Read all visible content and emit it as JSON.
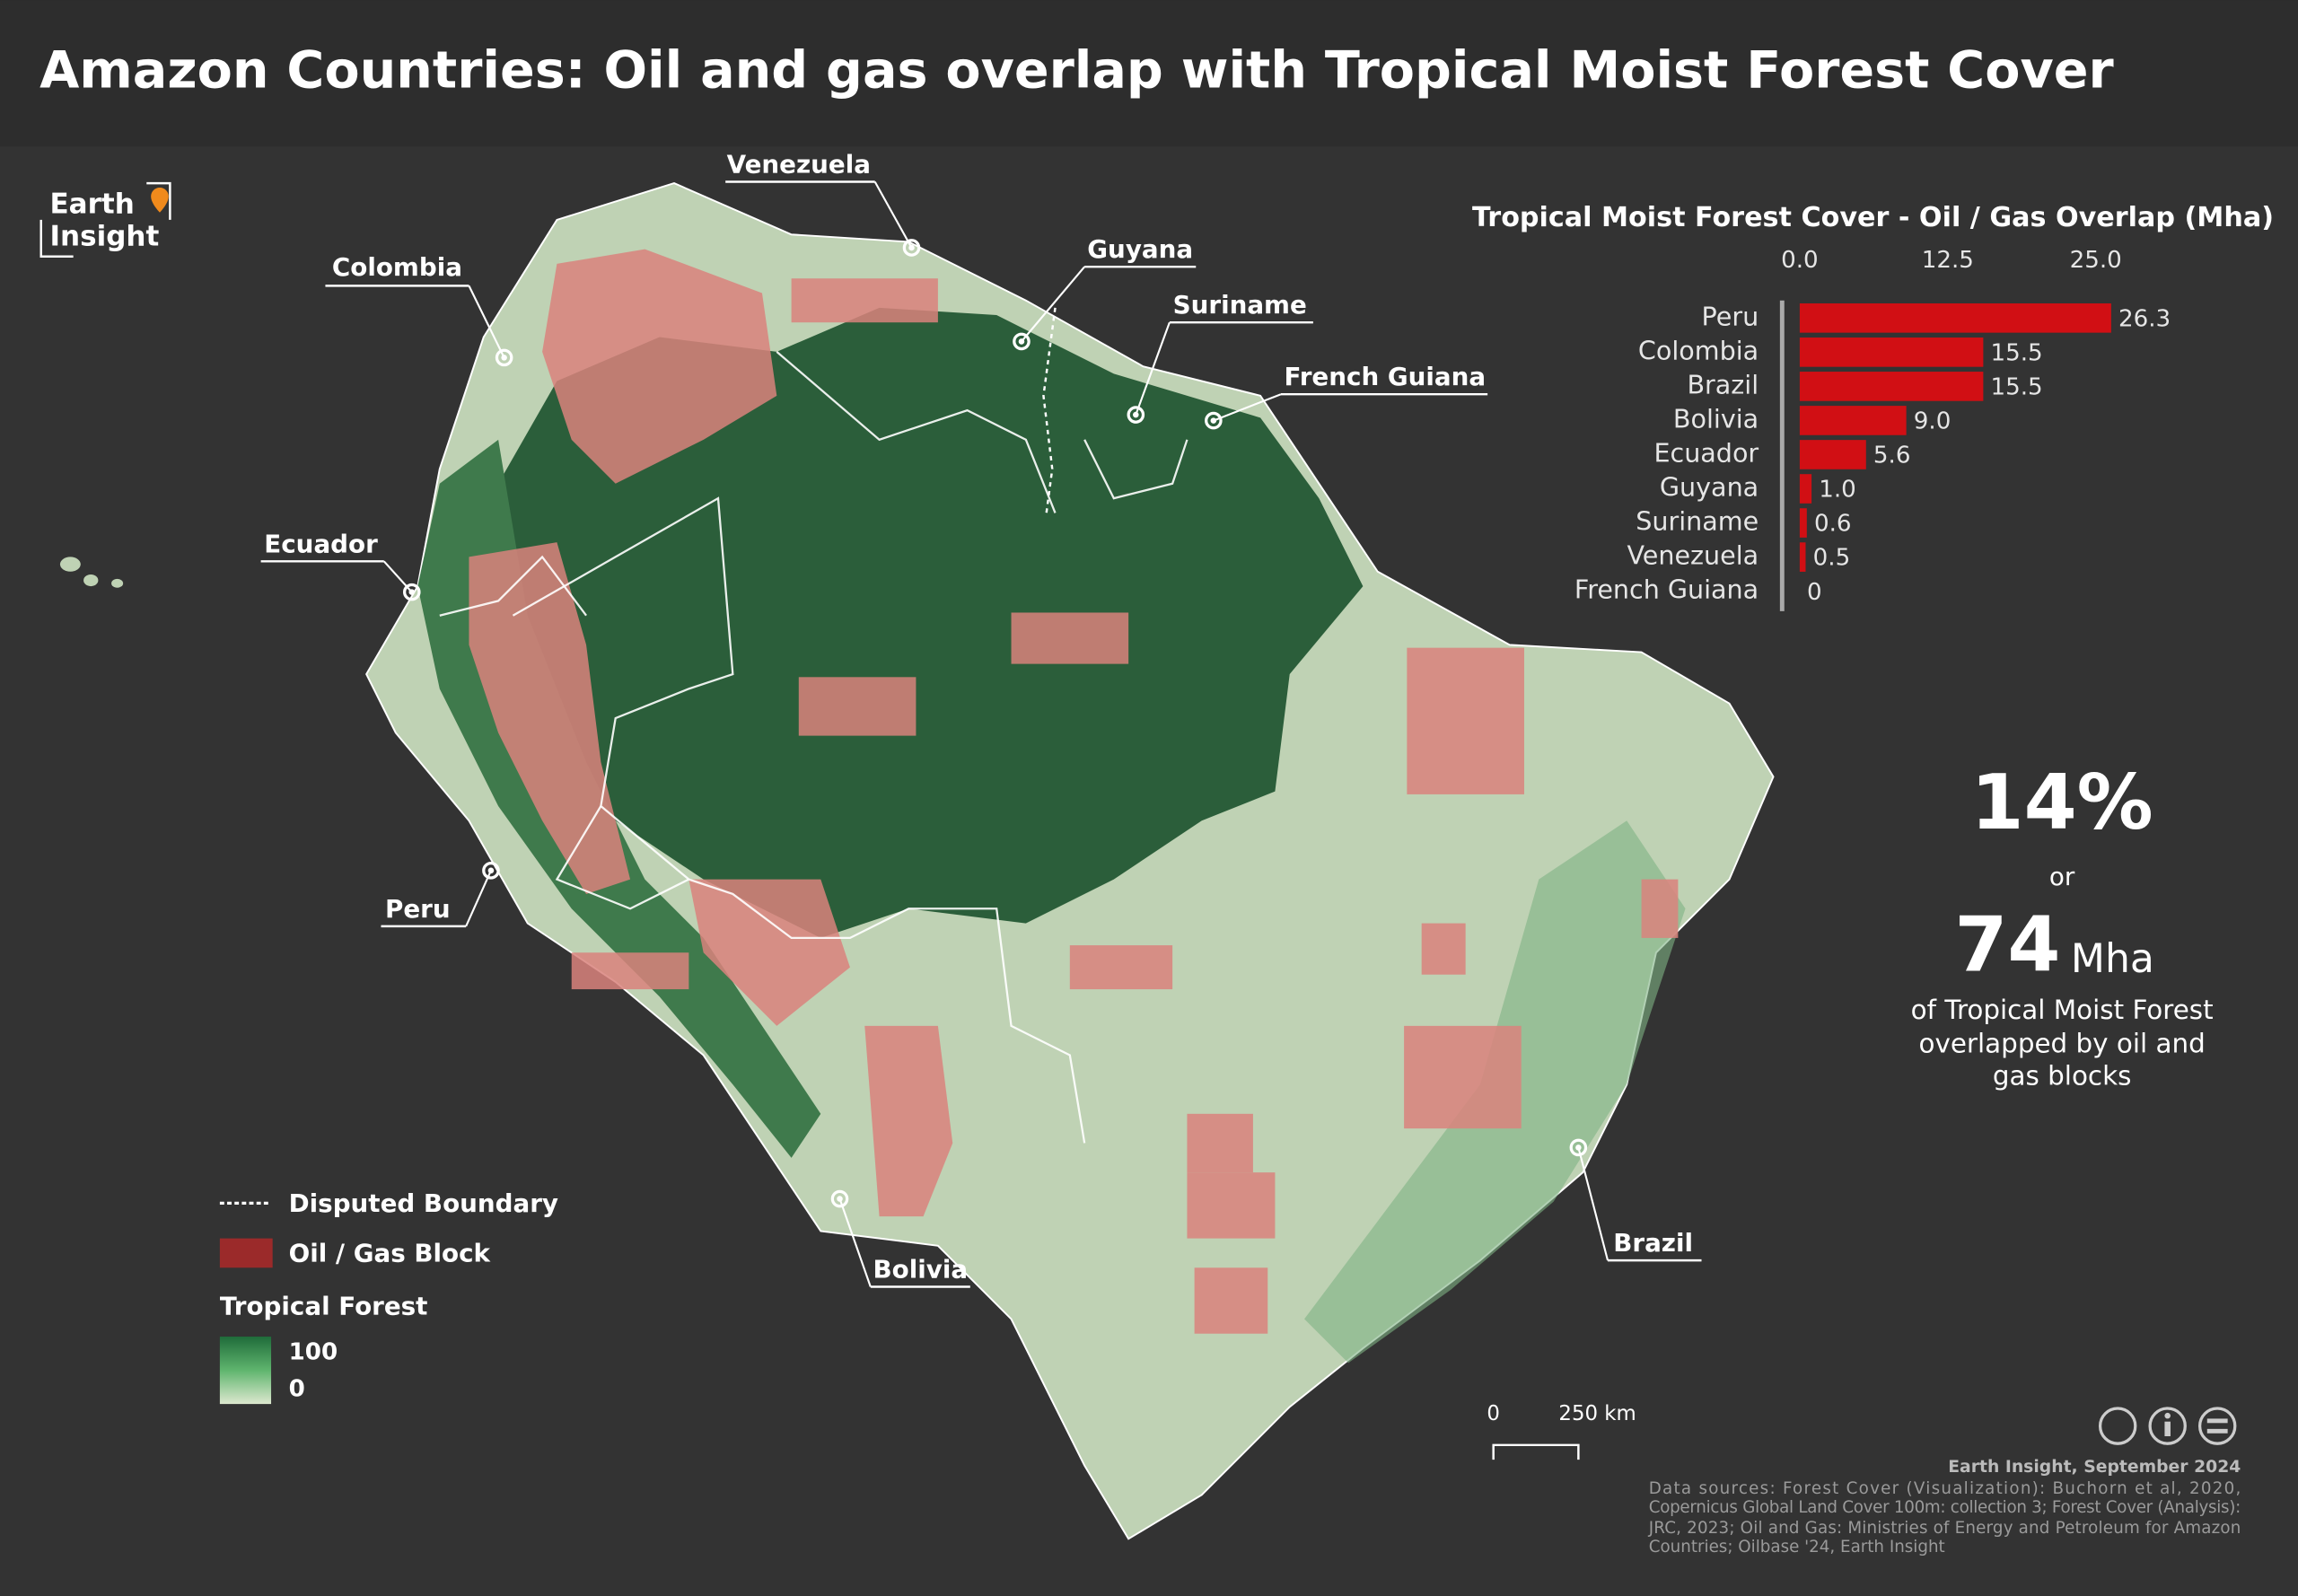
{
  "title": "Amazon Countries: Oil and gas overlap with Tropical Moist Forest Cover",
  "logo": {
    "line1": "Earth",
    "line2": "Insight"
  },
  "map": {
    "labels": [
      "Venezuela",
      "Colombia",
      "Guyana",
      "Suriname",
      "French Guiana",
      "Ecuador",
      "Peru",
      "Bolivia",
      "Brazil"
    ]
  },
  "legend": {
    "disputed": "Disputed Boundary",
    "block": "Oil / Gas Block",
    "forest_title": "Tropical Forest",
    "forest_high": "100",
    "forest_low": "0"
  },
  "chart_data": {
    "type": "bar",
    "orientation": "horizontal",
    "title": "Tropical Moist Forest Cover - Oil / Gas Overlap (Mha)",
    "categories": [
      "Peru",
      "Colombia",
      "Brazil",
      "Bolivia",
      "Ecuador",
      "Guyana",
      "Suriname",
      "Venezuela",
      "French Guiana"
    ],
    "values": [
      26.3,
      15.5,
      15.5,
      9.0,
      5.6,
      1.0,
      0.6,
      0.5,
      0
    ],
    "value_labels": [
      "26.3",
      "15.5",
      "15.5",
      "9.0",
      "5.6",
      "1.0",
      "0.6",
      "0.5",
      "0"
    ],
    "color": "#d10f14",
    "xlim": [
      0,
      30
    ],
    "xticks": [
      {
        "value": 0,
        "label": "0.0"
      },
      12.5,
      {
        "value": 25,
        "label": "25.0"
      }
    ]
  },
  "stats": {
    "percent": "14%",
    "or": "or",
    "amount": "74",
    "unit": "Mha",
    "caption": [
      "of Tropical Moist Forest",
      "overlapped by oil and",
      "gas blocks"
    ]
  },
  "scale_bar": {
    "start": "0",
    "end": "250 km"
  },
  "credits": {
    "byline": "Earth Insight,  September 2024",
    "sources": [
      "Data sources: Forest Cover (Visualization): Buchorn et al, 2020,",
      "Copernicus Global Land Cover 100m: collection 3; Forest Cover (Analysis):",
      "JRC, 2023; Oil and Gas: Ministries of Energy and Petroleum for Amazon",
      "Countries; Oilbase '24, Earth Insight"
    ]
  }
}
